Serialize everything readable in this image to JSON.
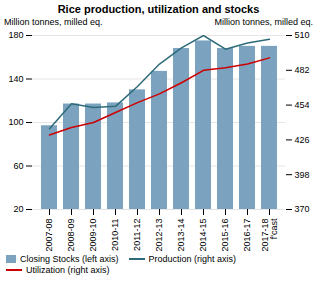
{
  "chart_data": {
    "type": "bar",
    "title": "Rice production, utilization and stocks",
    "ylabel": "Million tonnes, milled eq.",
    "y2label": "Million tonnes, milled eq.",
    "categories": [
      "2007-08",
      "2008-09",
      "2009-10",
      "2010-11",
      "2011-12",
      "2012-13",
      "2013-14",
      "2014-15",
      "2015-16",
      "2016-17",
      "2017-18\nf'cast"
    ],
    "series": [
      {
        "name": "Closing Stocks (left axis)",
        "type": "bar",
        "color": "#7ba3c0",
        "values": [
          97,
          117,
          117,
          118,
          130,
          147,
          168,
          175,
          168,
          170,
          170
        ]
      },
      {
        "name": "Production (right axis)",
        "type": "line",
        "axis": "y2",
        "color": "#2e6b7a",
        "values": [
          435,
          455,
          452,
          453,
          469,
          487,
          500,
          510,
          499,
          504,
          507
        ]
      },
      {
        "name": "Utilization (right axis)",
        "type": "line",
        "axis": "y2",
        "color": "#cc0000",
        "values": [
          430,
          436,
          440,
          448,
          456,
          463,
          472,
          482,
          484,
          487,
          492
        ]
      }
    ],
    "ylim": [
      20,
      180
    ],
    "yticks": [
      20,
      60,
      100,
      140,
      180
    ],
    "y2lim": [
      370,
      510
    ],
    "y2ticks": [
      370,
      398,
      426,
      454,
      482,
      510
    ],
    "grid": true,
    "legend": "bottom"
  }
}
